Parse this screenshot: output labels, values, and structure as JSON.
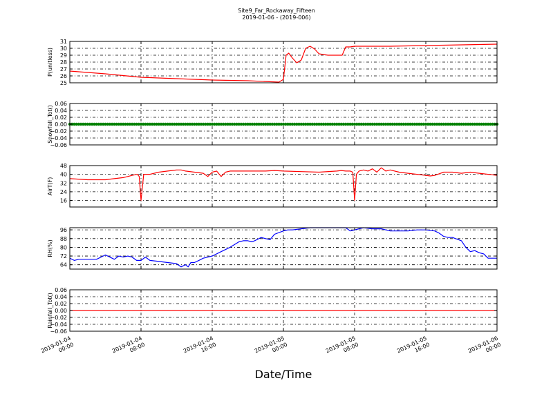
{
  "figure": {
    "title": "Site9_Far_Rockaway_Fifteen",
    "subtitle": "2019-01-06 - (2019-006)",
    "xlabel": "Date/Time"
  },
  "chart_data": [
    {
      "type": "line",
      "ylabel": "P(unitless)",
      "color": "#ff0000",
      "ylim": [
        25,
        31
      ],
      "yticks": [
        "25",
        "26",
        "27",
        "28",
        "29",
        "30",
        "31"
      ],
      "ytick_values": [
        25,
        26,
        27,
        28,
        29,
        30,
        31
      ],
      "grid": true,
      "x_hours": [
        0,
        4,
        8,
        12,
        16,
        20,
        23.5,
        24,
        24.3,
        24.6,
        25,
        25.5,
        26,
        26.5,
        27,
        27.5,
        28,
        29,
        30,
        30.6,
        31,
        31.5,
        32,
        32.4,
        33,
        36,
        40,
        44,
        48
      ],
      "y": [
        26.7,
        26.3,
        25.8,
        25.6,
        25.4,
        25.3,
        25.1,
        25.5,
        29.0,
        29.3,
        28.6,
        27.9,
        28.3,
        30.0,
        30.3,
        29.9,
        29.2,
        29.0,
        29.0,
        29.0,
        30.2,
        30.2,
        30.3,
        30.3,
        30.3,
        30.3,
        30.4,
        30.5,
        30.6
      ]
    },
    {
      "type": "scatter",
      "ylabel": "Snowfall_Tot()",
      "color": "#008000",
      "ylim": [
        -0.06,
        0.06
      ],
      "yticks": [
        "−0.06",
        "−0.04",
        "−0.02",
        "0.00",
        "0.02",
        "0.04",
        "0.06"
      ],
      "ytick_values": [
        -0.06,
        -0.04,
        -0.02,
        0,
        0.02,
        0.04,
        0.06
      ],
      "grid": true,
      "x_range": [
        0,
        48
      ],
      "constant_value": 0.0
    },
    {
      "type": "line",
      "ylabel": "AirT(F)",
      "color": "#ff0000",
      "ylim": [
        10,
        48
      ],
      "yticks": [
        "16",
        "24",
        "32",
        "40",
        "48"
      ],
      "ytick_values": [
        16,
        24,
        32,
        40,
        48
      ],
      "grid": true,
      "x_hours": [
        0,
        2,
        4,
        5,
        6,
        7,
        7.6,
        7.8,
        8.0,
        8.3,
        9,
        10,
        11,
        12,
        12.5,
        13,
        14,
        15,
        15.5,
        16,
        16.5,
        17,
        17.5,
        18,
        19,
        20,
        21,
        22,
        23,
        24,
        26,
        28,
        30,
        30.5,
        31,
        31.5,
        31.8,
        32.0,
        32.2,
        32.5,
        33,
        33.5,
        34,
        34.5,
        35,
        35.5,
        36,
        37,
        38,
        39,
        40,
        40.5,
        41,
        42,
        43,
        44,
        45,
        46,
        47,
        48
      ],
      "y": [
        36,
        35,
        35,
        36,
        37,
        39,
        40,
        38,
        16,
        40,
        40,
        42,
        43,
        44,
        44,
        43,
        42,
        41,
        38,
        42,
        43,
        38,
        42,
        43,
        43,
        43,
        43,
        43,
        43.5,
        43,
        42.5,
        42,
        43,
        43.5,
        43,
        43,
        42,
        16,
        40,
        43,
        44,
        43,
        45,
        42,
        46,
        43,
        44,
        42,
        41,
        40,
        39,
        38.5,
        39,
        42,
        42,
        41,
        42,
        41,
        40,
        39
      ]
    },
    {
      "type": "line",
      "ylabel": "RH(%)",
      "color": "#0000ff",
      "ylim": [
        60,
        98
      ],
      "yticks": [
        "64",
        "72",
        "80",
        "88",
        "96"
      ],
      "ytick_values": [
        64,
        72,
        80,
        88,
        96
      ],
      "grid": true,
      "x_hours": [
        0,
        0.5,
        1,
        2,
        3,
        4,
        4.5,
        5,
        5.5,
        6,
        6.5,
        7,
        7.5,
        8,
        8.5,
        9,
        10,
        11,
        12,
        12.5,
        13,
        13.3,
        13.6,
        14,
        14.5,
        15,
        16,
        17,
        18,
        19,
        19.5,
        20,
        20.5,
        21,
        21.5,
        22,
        22.5,
        23,
        24,
        24.5,
        25,
        26,
        27,
        28,
        29,
        30,
        31,
        31.5,
        32,
        33,
        34,
        35,
        36,
        37,
        38,
        39,
        40,
        41,
        41.5,
        42,
        42.5,
        43,
        44,
        44.5,
        45,
        45.5,
        46,
        46.5,
        47,
        48
      ],
      "y": [
        70,
        68,
        69,
        69,
        69,
        73,
        71,
        69,
        72,
        71,
        72,
        71,
        68,
        68,
        71,
        68,
        67,
        66,
        65,
        62,
        64,
        62,
        66,
        66,
        68,
        70,
        72,
        76,
        80,
        85,
        86,
        86,
        85,
        87,
        89,
        88,
        87,
        92,
        95,
        96,
        96,
        97,
        98,
        98,
        98,
        98,
        98,
        95,
        96,
        98,
        97,
        97,
        95,
        95,
        95,
        96,
        96,
        95,
        93,
        90,
        89,
        89,
        86,
        80,
        76,
        77,
        75,
        74,
        70,
        70
      ]
    },
    {
      "type": "line",
      "ylabel": "Rainfall_Tot()",
      "color": "#ff0000",
      "ylim": [
        -0.06,
        0.06
      ],
      "yticks": [
        "−0.06",
        "−0.04",
        "−0.02",
        "0.00",
        "0.02",
        "0.04",
        "0.06"
      ],
      "ytick_values": [
        -0.06,
        -0.04,
        -0.02,
        0,
        0.02,
        0.04,
        0.06
      ],
      "grid": true,
      "x_hours": [
        0,
        48
      ],
      "y": [
        0,
        0
      ]
    }
  ],
  "x_axis": {
    "range_hours": [
      0,
      48
    ],
    "ticks": [
      {
        "hour": 0,
        "line1": "2019-01-04",
        "line2": "00:00"
      },
      {
        "hour": 8,
        "line1": "2019-01-04",
        "line2": "08:00"
      },
      {
        "hour": 16,
        "line1": "2019-01-04",
        "line2": "16:00"
      },
      {
        "hour": 24,
        "line1": "2019-01-05",
        "line2": "00:00"
      },
      {
        "hour": 32,
        "line1": "2019-01-05",
        "line2": "08:00"
      },
      {
        "hour": 40,
        "line1": "2019-01-05",
        "line2": "16:00"
      },
      {
        "hour": 48,
        "line1": "2019-01-06",
        "line2": "00:00"
      }
    ]
  }
}
